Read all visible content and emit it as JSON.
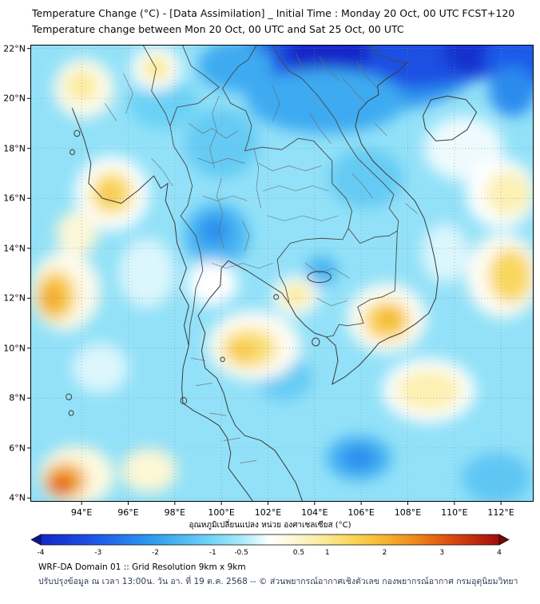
{
  "header": {
    "title_line1": "Temperature Change (°C) - [Data Assimilation] _ Initial Time : Monday 20 Oct, 00 UTC FCST+120",
    "title_line2": "Temperature change between Mon 20 Oct, 00 UTC and Sat 25 Oct, 00 UTC"
  },
  "footer": {
    "line1": "WRF-DA Domain 01 :: Grid Resolution 9km x 9km",
    "line2": "ปรับปรุงข้อมูล ณ เวลา 13:00น. วัน อา. ที่ 19 ต.ค. 2568 -- © ส่วนพยากรณ์อากาศเชิงตัวเลข กองพยากรณ์อากาศ กรมอุตุนิยมวิทยา"
  },
  "chart_data": {
    "type": "heatmap",
    "title": "Temperature Change (°C) - [Data Assimilation]",
    "units": "°C",
    "grid": "dotted",
    "lon_range": [
      91.8,
      113.4
    ],
    "lat_range": [
      3.85,
      22.15
    ],
    "x_tick_values": [
      94,
      96,
      98,
      100,
      102,
      104,
      106,
      108,
      110,
      112
    ],
    "x_tick_labels": [
      "94°E",
      "96°E",
      "98°E",
      "100°E",
      "102°E",
      "104°E",
      "106°E",
      "108°E",
      "110°E",
      "112°E"
    ],
    "y_tick_values": [
      4,
      6,
      8,
      10,
      12,
      14,
      16,
      18,
      20,
      22
    ],
    "y_tick_labels": [
      "4°N",
      "6°N",
      "8°N",
      "10°N",
      "12°N",
      "14°N",
      "16°N",
      "18°N",
      "20°N",
      "22°N"
    ],
    "base_value": -0.7,
    "colorbar": {
      "caption": "อุณหภูมิเปลี่ยนแปลง หน่วย องศาเซลเซียส (°C)",
      "min": -4,
      "max": 4,
      "tick_values": [
        -4,
        -3,
        -2,
        -1,
        -0.5,
        0.5,
        1,
        2,
        3,
        4
      ],
      "tick_labels": [
        "-4",
        "-3",
        "-2",
        "-1",
        "-0.5",
        "0.5",
        "1",
        "2",
        "3",
        "4"
      ],
      "stops": [
        {
          "v": -4.5,
          "c": "#0b1580"
        },
        {
          "v": -4.0,
          "c": "#1526c8"
        },
        {
          "v": -3.0,
          "c": "#1e5ae8"
        },
        {
          "v": -2.0,
          "c": "#2f9ff0"
        },
        {
          "v": -1.0,
          "c": "#72d6f5"
        },
        {
          "v": -0.5,
          "c": "#a8e9fa"
        },
        {
          "v": 0.0,
          "c": "#ffffff"
        },
        {
          "v": 0.5,
          "c": "#fdf5cc"
        },
        {
          "v": 1.0,
          "c": "#fbe88e"
        },
        {
          "v": 1.5,
          "c": "#f9d352"
        },
        {
          "v": 2.0,
          "c": "#f5b52e"
        },
        {
          "v": 2.5,
          "c": "#ee8c1c"
        },
        {
          "v": 3.0,
          "c": "#e25a11"
        },
        {
          "v": 3.5,
          "c": "#c62f0d"
        },
        {
          "v": 4.0,
          "c": "#a00d0d"
        },
        {
          "v": 4.5,
          "c": "#700606"
        }
      ]
    },
    "blobs": [
      {
        "lon": 105.5,
        "lat": 21.3,
        "rx": 5.5,
        "ry": 1.9,
        "v": -2.2
      },
      {
        "lon": 107.0,
        "lat": 21.9,
        "rx": 6.0,
        "ry": 1.5,
        "v": -3.2
      },
      {
        "lon": 104.6,
        "lat": 21.8,
        "rx": 1.8,
        "ry": 1.1,
        "v": -4.0
      },
      {
        "lon": 111.0,
        "lat": 21.9,
        "rx": 1.5,
        "ry": 1.0,
        "v": -3.8
      },
      {
        "lon": 112.8,
        "lat": 21.5,
        "rx": 1.5,
        "ry": 1.3,
        "v": -3.0
      },
      {
        "lon": 112.5,
        "lat": 20.3,
        "rx": 1.0,
        "ry": 1.0,
        "v": -2.3
      },
      {
        "lon": 104.5,
        "lat": 19.9,
        "rx": 3.4,
        "ry": 1.3,
        "v": -1.8
      },
      {
        "lon": 100.6,
        "lat": 21.3,
        "rx": 1.6,
        "ry": 1.0,
        "v": -1.8
      },
      {
        "lon": 97.5,
        "lat": 19.8,
        "rx": 1.5,
        "ry": 1.0,
        "v": -1.1
      },
      {
        "lon": 100.0,
        "lat": 18.2,
        "rx": 1.6,
        "ry": 1.4,
        "v": -1.2
      },
      {
        "lon": 106.2,
        "lat": 16.8,
        "rx": 1.6,
        "ry": 1.2,
        "v": -1.2
      },
      {
        "lon": 99.8,
        "lat": 14.5,
        "rx": 1.4,
        "ry": 1.3,
        "v": -1.6
      },
      {
        "lon": 99.7,
        "lat": 14.7,
        "rx": 0.7,
        "ry": 0.6,
        "v": -2.2
      },
      {
        "lon": 104.3,
        "lat": 13.1,
        "rx": 0.7,
        "ry": 0.6,
        "v": -1.6
      },
      {
        "lon": 102.7,
        "lat": 8.8,
        "rx": 1.2,
        "ry": 0.9,
        "v": -1.2
      },
      {
        "lon": 105.9,
        "lat": 5.6,
        "rx": 1.4,
        "ry": 0.9,
        "v": -1.7
      },
      {
        "lon": 105.9,
        "lat": 5.6,
        "rx": 0.7,
        "ry": 0.45,
        "v": -2.3
      },
      {
        "lon": 111.8,
        "lat": 4.8,
        "rx": 1.5,
        "ry": 1.0,
        "v": -1.3
      },
      {
        "lon": 110.4,
        "lat": 18.0,
        "rx": 1.7,
        "ry": 1.3,
        "v": -0.1
      },
      {
        "lon": 109.6,
        "lat": 13.8,
        "rx": 1.0,
        "ry": 1.2,
        "v": -0.2
      },
      {
        "lon": 96.8,
        "lat": 13.0,
        "rx": 1.2,
        "ry": 1.4,
        "v": -0.2
      },
      {
        "lon": 94.8,
        "lat": 9.2,
        "rx": 1.2,
        "ry": 1.0,
        "v": -0.2
      },
      {
        "lon": 99.6,
        "lat": 12.6,
        "rx": 1.1,
        "ry": 0.9,
        "v": 0.0
      },
      {
        "lon": 95.3,
        "lat": 16.2,
        "rx": 1.6,
        "ry": 1.5,
        "v": 0.0
      },
      {
        "lon": 95.3,
        "lat": 16.2,
        "rx": 0.95,
        "ry": 0.9,
        "v": 1.2
      },
      {
        "lon": 95.2,
        "lat": 16.2,
        "rx": 0.45,
        "ry": 0.4,
        "v": 1.8
      },
      {
        "lon": 97.2,
        "lat": 21.2,
        "rx": 1.1,
        "ry": 0.9,
        "v": 0.0
      },
      {
        "lon": 97.2,
        "lat": 21.2,
        "rx": 0.6,
        "ry": 0.5,
        "v": 1.0
      },
      {
        "lon": 94.1,
        "lat": 20.4,
        "rx": 1.3,
        "ry": 1.2,
        "v": 0.2
      },
      {
        "lon": 94.0,
        "lat": 20.5,
        "rx": 0.7,
        "ry": 0.6,
        "v": 0.9
      },
      {
        "lon": 93.8,
        "lat": 14.6,
        "rx": 0.9,
        "ry": 0.9,
        "v": 0.4
      },
      {
        "lon": 93.3,
        "lat": 12.3,
        "rx": 1.5,
        "ry": 1.6,
        "v": 0.2
      },
      {
        "lon": 92.9,
        "lat": 12.1,
        "rx": 0.85,
        "ry": 1.0,
        "v": 1.6
      },
      {
        "lon": 92.7,
        "lat": 12.0,
        "rx": 0.45,
        "ry": 0.55,
        "v": 2.2
      },
      {
        "lon": 93.8,
        "lat": 4.9,
        "rx": 1.6,
        "ry": 1.2,
        "v": 0.3
      },
      {
        "lon": 93.3,
        "lat": 4.7,
        "rx": 0.9,
        "ry": 0.7,
        "v": 2.2
      },
      {
        "lon": 93.1,
        "lat": 4.5,
        "rx": 0.5,
        "ry": 0.4,
        "v": 3.0
      },
      {
        "lon": 96.9,
        "lat": 5.1,
        "rx": 1.2,
        "ry": 0.9,
        "v": 0.4
      },
      {
        "lon": 101.4,
        "lat": 10.1,
        "rx": 2.0,
        "ry": 1.4,
        "v": 0.1
      },
      {
        "lon": 101.2,
        "lat": 10.0,
        "rx": 1.2,
        "ry": 0.8,
        "v": 1.2
      },
      {
        "lon": 100.9,
        "lat": 9.9,
        "rx": 0.6,
        "ry": 0.4,
        "v": 1.7
      },
      {
        "lon": 103.2,
        "lat": 12.1,
        "rx": 1.0,
        "ry": 0.8,
        "v": 0.0
      },
      {
        "lon": 103.2,
        "lat": 12.1,
        "rx": 0.65,
        "ry": 0.5,
        "v": 0.9
      },
      {
        "lon": 107.1,
        "lat": 11.2,
        "rx": 1.7,
        "ry": 1.4,
        "v": 0.1
      },
      {
        "lon": 107.1,
        "lat": 11.1,
        "rx": 1.0,
        "ry": 0.8,
        "v": 1.5
      },
      {
        "lon": 107.2,
        "lat": 11.2,
        "rx": 0.5,
        "ry": 0.4,
        "v": 2.0
      },
      {
        "lon": 108.9,
        "lat": 8.3,
        "rx": 2.0,
        "ry": 1.3,
        "v": 0.0
      },
      {
        "lon": 108.9,
        "lat": 8.3,
        "rx": 1.4,
        "ry": 0.85,
        "v": 0.7
      },
      {
        "lon": 112.1,
        "lat": 12.9,
        "rx": 1.6,
        "ry": 1.7,
        "v": 0.1
      },
      {
        "lon": 112.4,
        "lat": 12.9,
        "rx": 0.95,
        "ry": 1.1,
        "v": 1.4
      },
      {
        "lon": 112.0,
        "lat": 16.2,
        "rx": 1.5,
        "ry": 1.4,
        "v": 0.0
      },
      {
        "lon": 112.3,
        "lat": 16.2,
        "rx": 1.0,
        "ry": 0.9,
        "v": 0.7
      }
    ]
  }
}
